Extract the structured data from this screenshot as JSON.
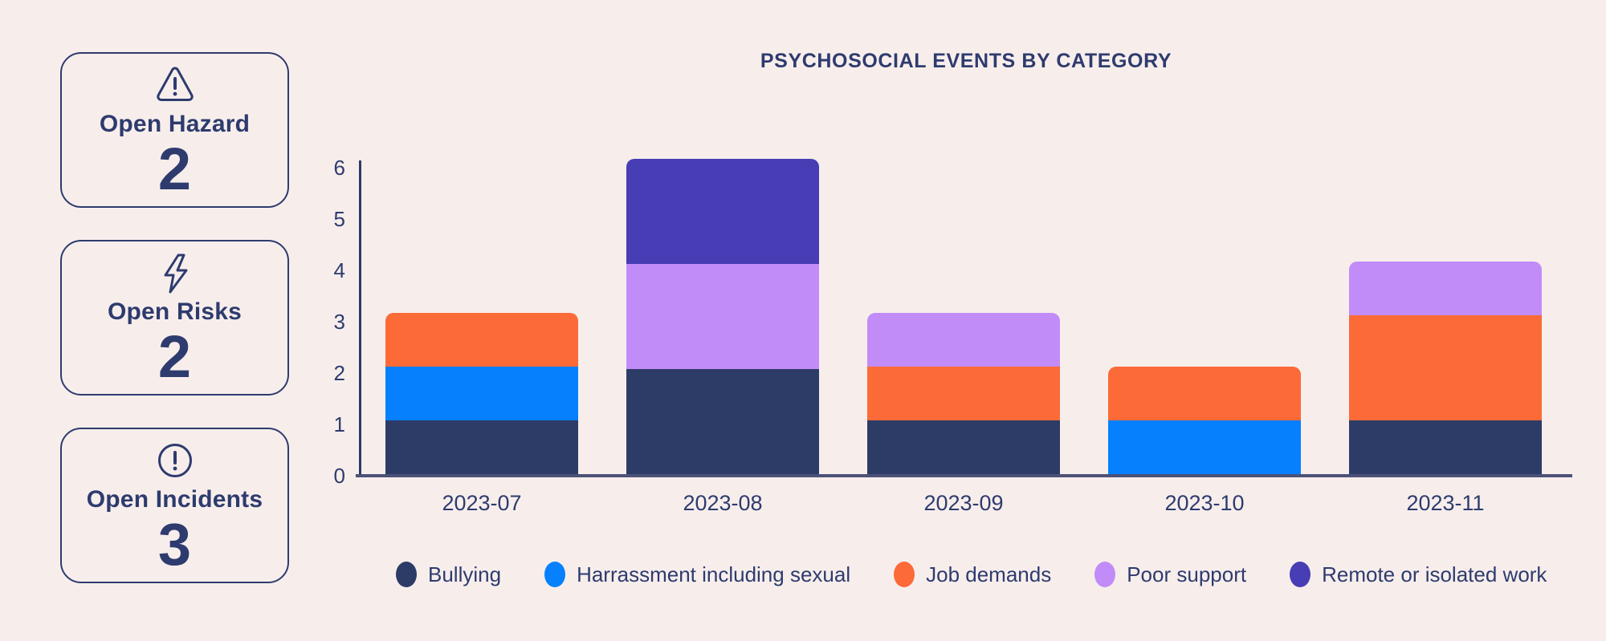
{
  "colors": {
    "background": "#f7eeec",
    "text": "#2e3b6e",
    "card_border": "#2e3b6e",
    "y_axis": "#2e3a66",
    "x_axis": "#4c5277"
  },
  "summary_cards": [
    {
      "icon": "warning-triangle-icon",
      "label": "Open Hazard",
      "value": "2"
    },
    {
      "icon": "lightning-bolt-icon",
      "label": "Open Risks",
      "value": "2"
    },
    {
      "icon": "exclamation-circle-icon",
      "label": "Open Incidents",
      "value": "3"
    }
  ],
  "chart_data": {
    "type": "bar",
    "stacked": true,
    "title": "PSYCHOSOCIAL EVENTS BY CATEGORY",
    "categories": [
      "2023-07",
      "2023-08",
      "2023-09",
      "2023-10",
      "2023-11"
    ],
    "series": [
      {
        "name": "Bullying",
        "color": "#2d3c66",
        "values": [
          1,
          2,
          1,
          0,
          1
        ]
      },
      {
        "name": "Harrassment including sexual",
        "color": "#0680fc",
        "values": [
          1,
          0,
          0,
          1,
          0
        ]
      },
      {
        "name": "Job demands",
        "color": "#fc6a38",
        "values": [
          1,
          0,
          1,
          1,
          2
        ]
      },
      {
        "name": "Poor support",
        "color": "#c18cf8",
        "values": [
          0,
          2,
          1,
          0,
          1
        ]
      },
      {
        "name": "Remote or isolated work",
        "color": "#473db4",
        "values": [
          0,
          2,
          0,
          0,
          0
        ]
      }
    ],
    "yticks": [
      0,
      1,
      2,
      3,
      4,
      5,
      6
    ],
    "ylim": [
      0,
      6
    ],
    "xlabel": "",
    "ylabel": "",
    "grid": false,
    "legend_position": "bottom"
  }
}
